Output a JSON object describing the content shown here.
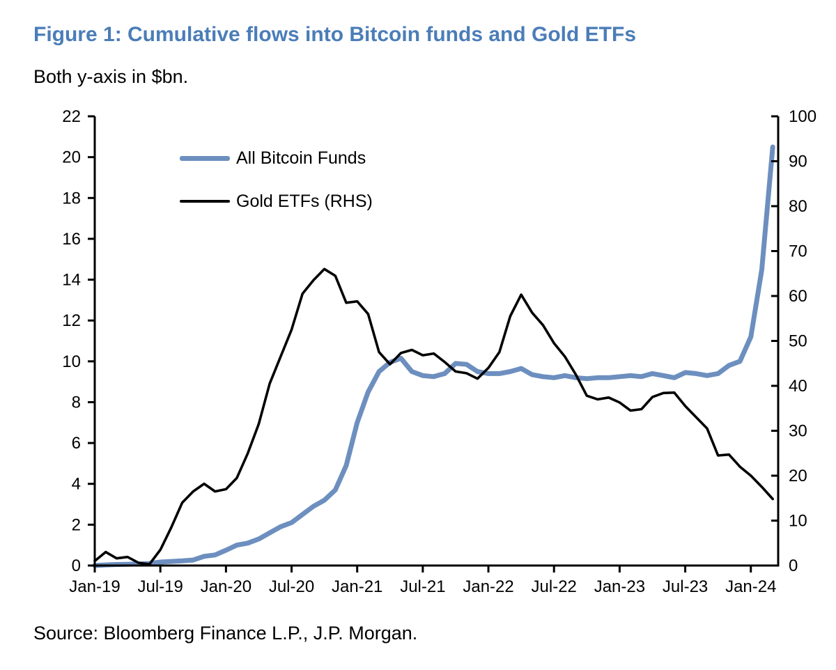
{
  "figure": {
    "title": "Figure 1: Cumulative flows into Bitcoin funds and Gold ETFs",
    "subtitle": "Both y-axis in $bn.",
    "source": "Source: Bloomberg Finance L.P., J.P. Morgan."
  },
  "colors": {
    "title_accent": "#4b7db8",
    "bitcoin_line": "#6d8fbf",
    "gold_line": "#000000",
    "axis": "#000000"
  },
  "chart_data": {
    "type": "line",
    "title": "Figure 1: Cumulative flows into Bitcoin funds and Gold ETFs",
    "subtitle": "Both y-axis in $bn.",
    "grid": false,
    "legend_position": "inside-top-left",
    "x": [
      "Jan-19",
      "Feb-19",
      "Mar-19",
      "Apr-19",
      "May-19",
      "Jun-19",
      "Jul-19",
      "Aug-19",
      "Sep-19",
      "Oct-19",
      "Nov-19",
      "Dec-19",
      "Jan-20",
      "Feb-20",
      "Mar-20",
      "Apr-20",
      "May-20",
      "Jun-20",
      "Jul-20",
      "Aug-20",
      "Sep-20",
      "Oct-20",
      "Nov-20",
      "Dec-20",
      "Jan-21",
      "Feb-21",
      "Mar-21",
      "Apr-21",
      "May-21",
      "Jun-21",
      "Jul-21",
      "Aug-21",
      "Sep-21",
      "Oct-21",
      "Nov-21",
      "Dec-21",
      "Jan-22",
      "Feb-22",
      "Mar-22",
      "Apr-22",
      "May-22",
      "Jun-22",
      "Jul-22",
      "Aug-22",
      "Sep-22",
      "Oct-22",
      "Nov-22",
      "Dec-22",
      "Jan-23",
      "Feb-23",
      "Mar-23",
      "Apr-23",
      "May-23",
      "Jun-23",
      "Jul-23",
      "Aug-23",
      "Sep-23",
      "Oct-23",
      "Nov-23",
      "Dec-23",
      "Jan-24",
      "Feb-24",
      "Mar-24"
    ],
    "x_tick_labels": [
      "Jan-19",
      "Jul-19",
      "Jan-20",
      "Jul-20",
      "Jan-21",
      "Jul-21",
      "Jan-22",
      "Jul-22",
      "Jan-23",
      "Jul-23",
      "Jan-24"
    ],
    "left_axis": {
      "label_units": "$bn",
      "min": 0,
      "max": 22,
      "step": 2,
      "ticks": [
        0,
        2,
        4,
        6,
        8,
        10,
        12,
        14,
        16,
        18,
        20,
        22
      ]
    },
    "right_axis": {
      "label_units": "$bn",
      "min": 0,
      "max": 100,
      "step": 10,
      "ticks": [
        0,
        10,
        20,
        30,
        40,
        50,
        60,
        70,
        80,
        90,
        100
      ]
    },
    "series": [
      {
        "name": "All Bitcoin Funds",
        "axis": "left",
        "color": "#6d8fbf",
        "stroke_width": 7,
        "values": [
          0.0,
          0.03,
          0.05,
          0.06,
          0.08,
          0.1,
          0.17,
          0.2,
          0.23,
          0.27,
          0.45,
          0.52,
          0.75,
          1.0,
          1.1,
          1.3,
          1.6,
          1.9,
          2.1,
          2.5,
          2.9,
          3.2,
          3.7,
          4.9,
          7.0,
          8.5,
          9.5,
          9.95,
          10.15,
          9.5,
          9.3,
          9.25,
          9.4,
          9.9,
          9.85,
          9.5,
          9.4,
          9.4,
          9.5,
          9.65,
          9.35,
          9.25,
          9.2,
          9.3,
          9.2,
          9.15,
          9.2,
          9.2,
          9.25,
          9.3,
          9.25,
          9.4,
          9.3,
          9.2,
          9.45,
          9.4,
          9.3,
          9.4,
          9.8,
          10.0,
          11.2,
          14.5,
          20.5
        ]
      },
      {
        "name": "Gold ETFs (RHS)",
        "axis": "right",
        "color": "#000000",
        "stroke_width": 3.6,
        "values": [
          1.0,
          3.0,
          1.6,
          1.9,
          0.6,
          0.3,
          3.5,
          8.5,
          14.0,
          16.5,
          18.2,
          16.5,
          17.0,
          19.5,
          25.0,
          31.5,
          40.5,
          46.5,
          52.5,
          60.5,
          63.5,
          66.0,
          64.5,
          58.5,
          58.8,
          56.0,
          47.5,
          44.8,
          47.3,
          48.0,
          46.8,
          47.2,
          45.3,
          43.2,
          42.8,
          41.6,
          44.0,
          47.5,
          55.5,
          60.3,
          56.3,
          53.5,
          49.5,
          46.5,
          42.5,
          37.8,
          37.0,
          37.4,
          36.3,
          34.5,
          34.8,
          37.5,
          38.4,
          38.5,
          35.5,
          33.0,
          30.5,
          24.5,
          24.7,
          22.0,
          20.0,
          17.5,
          14.8
        ]
      }
    ]
  }
}
